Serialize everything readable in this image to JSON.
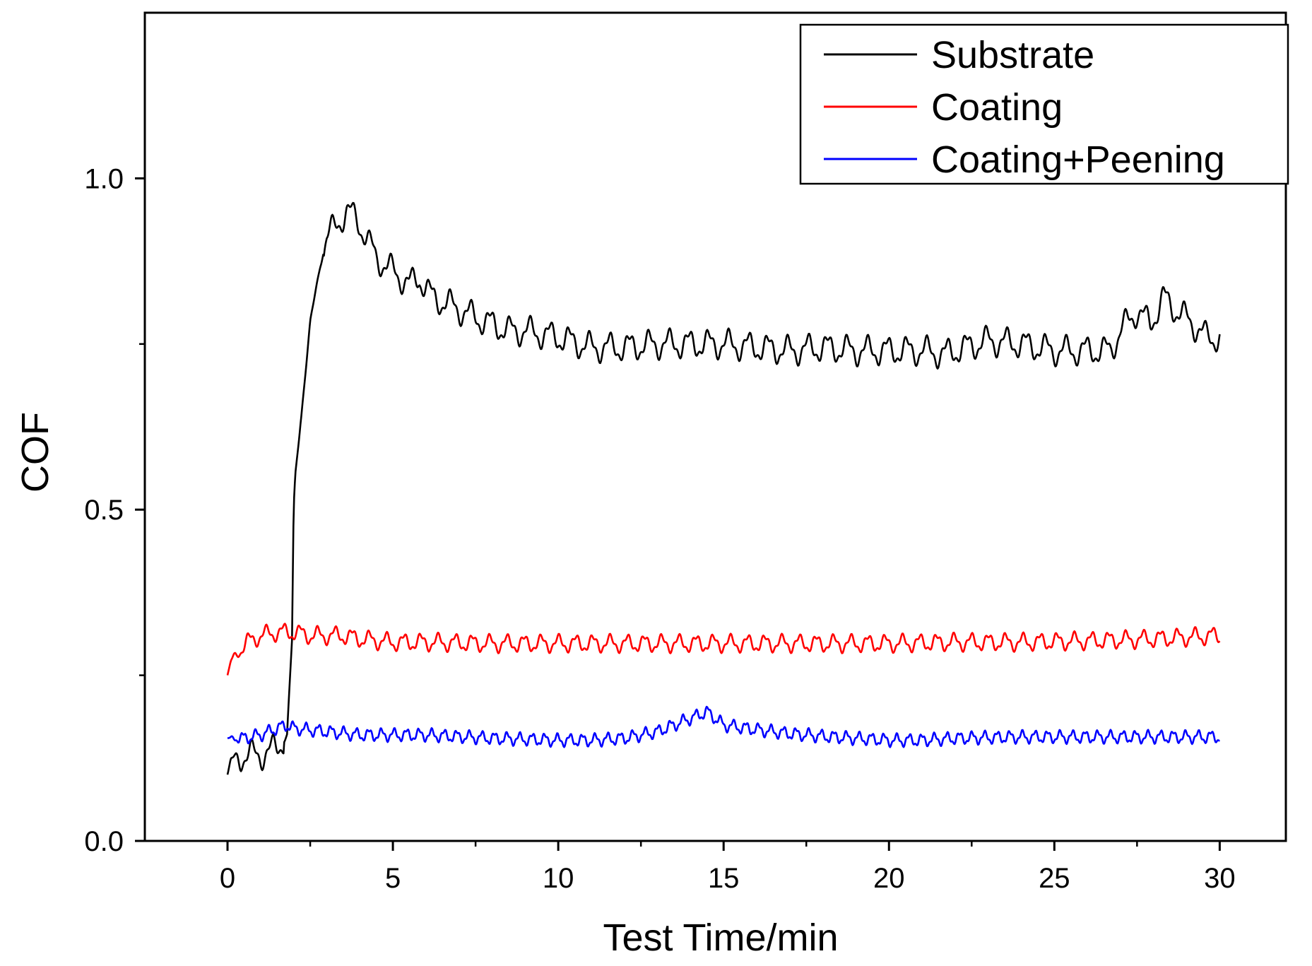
{
  "chart_data": {
    "type": "line",
    "title": "",
    "xlabel": "Test Time/min",
    "ylabel": "COF",
    "xlim": [
      -2.5,
      32
    ],
    "ylim": [
      0,
      1.25
    ],
    "x_ticks": [
      0,
      5,
      10,
      15,
      20,
      25,
      30
    ],
    "x_tick_labels": [
      "0",
      "5",
      "10",
      "15",
      "20",
      "25",
      "30"
    ],
    "x_minor_ticks": [
      2.5,
      7.5,
      12.5,
      17.5,
      22.5,
      27.5
    ],
    "y_ticks": [
      0.0,
      0.5,
      1.0
    ],
    "y_tick_labels": [
      "0.0",
      "0.5",
      "1.0"
    ],
    "y_minor_ticks": [
      0.25,
      0.75
    ],
    "grid": false,
    "legend_position": "top-right",
    "series": [
      {
        "name": "Substrate",
        "color": "#000000",
        "noise_amplitude": 0.018,
        "noise_period_min": 0.6,
        "x": [
          0,
          0.1,
          0.3,
          0.6,
          1.0,
          1.5,
          1.8,
          1.95,
          2.0,
          2.05,
          2.2,
          2.5,
          2.8,
          3.0,
          3.3,
          3.6,
          3.9,
          4.2,
          4.5,
          5.0,
          5.5,
          5.8,
          6.2,
          6.7,
          7.5,
          8.0,
          8.5,
          9.0,
          10.0,
          11.0,
          12.0,
          13.0,
          14.0,
          15.0,
          16.0,
          17.0,
          18.0,
          19.0,
          20.0,
          21.0,
          21.7,
          22.0,
          23.0,
          24.0,
          25.0,
          26.0,
          26.7,
          27.0,
          27.5,
          27.9,
          28.3,
          28.7,
          29.2,
          29.6,
          30.0
        ],
        "y": [
          0.1,
          0.12,
          0.125,
          0.13,
          0.13,
          0.14,
          0.16,
          0.3,
          0.5,
          0.55,
          0.63,
          0.78,
          0.87,
          0.91,
          0.93,
          0.95,
          0.94,
          0.91,
          0.88,
          0.86,
          0.84,
          0.85,
          0.82,
          0.81,
          0.79,
          0.78,
          0.77,
          0.77,
          0.76,
          0.745,
          0.745,
          0.75,
          0.75,
          0.75,
          0.745,
          0.74,
          0.745,
          0.74,
          0.74,
          0.74,
          0.735,
          0.74,
          0.755,
          0.75,
          0.74,
          0.74,
          0.74,
          0.77,
          0.8,
          0.78,
          0.82,
          0.8,
          0.78,
          0.76,
          0.76
        ]
      },
      {
        "name": "Coating",
        "color": "#ff0000",
        "noise_amplitude": 0.011,
        "noise_period_min": 0.52,
        "x": [
          0,
          0.1,
          0.3,
          0.6,
          1.0,
          1.5,
          2.0,
          2.5,
          3.0,
          3.5,
          4.0,
          5.0,
          6.0,
          8.0,
          10.0,
          12.0,
          14.0,
          16.0,
          18.0,
          20.0,
          22.0,
          24.0,
          26.0,
          28.0,
          30.0
        ],
        "y": [
          0.25,
          0.27,
          0.285,
          0.3,
          0.31,
          0.315,
          0.315,
          0.31,
          0.31,
          0.31,
          0.305,
          0.3,
          0.3,
          0.298,
          0.298,
          0.298,
          0.298,
          0.298,
          0.298,
          0.298,
          0.3,
          0.3,
          0.302,
          0.305,
          0.31
        ]
      },
      {
        "name": "Coating+Peening",
        "color": "#0000ff",
        "noise_amplitude": 0.008,
        "noise_period_min": 0.38,
        "x": [
          0,
          0.5,
          1.0,
          1.5,
          1.8,
          2.0,
          3.0,
          4.0,
          5.0,
          6.0,
          8.0,
          10.0,
          11.0,
          12.0,
          13.0,
          13.5,
          14.0,
          14.5,
          15.0,
          16.0,
          17.0,
          18.0,
          19.0,
          20.0,
          21.0,
          22.0,
          24.0,
          26.0,
          28.0,
          30.0
        ],
        "y": [
          0.155,
          0.155,
          0.16,
          0.17,
          0.175,
          0.17,
          0.165,
          0.16,
          0.16,
          0.16,
          0.155,
          0.152,
          0.152,
          0.155,
          0.165,
          0.175,
          0.185,
          0.195,
          0.175,
          0.168,
          0.162,
          0.158,
          0.155,
          0.152,
          0.152,
          0.155,
          0.157,
          0.157,
          0.157,
          0.157
        ]
      }
    ]
  }
}
